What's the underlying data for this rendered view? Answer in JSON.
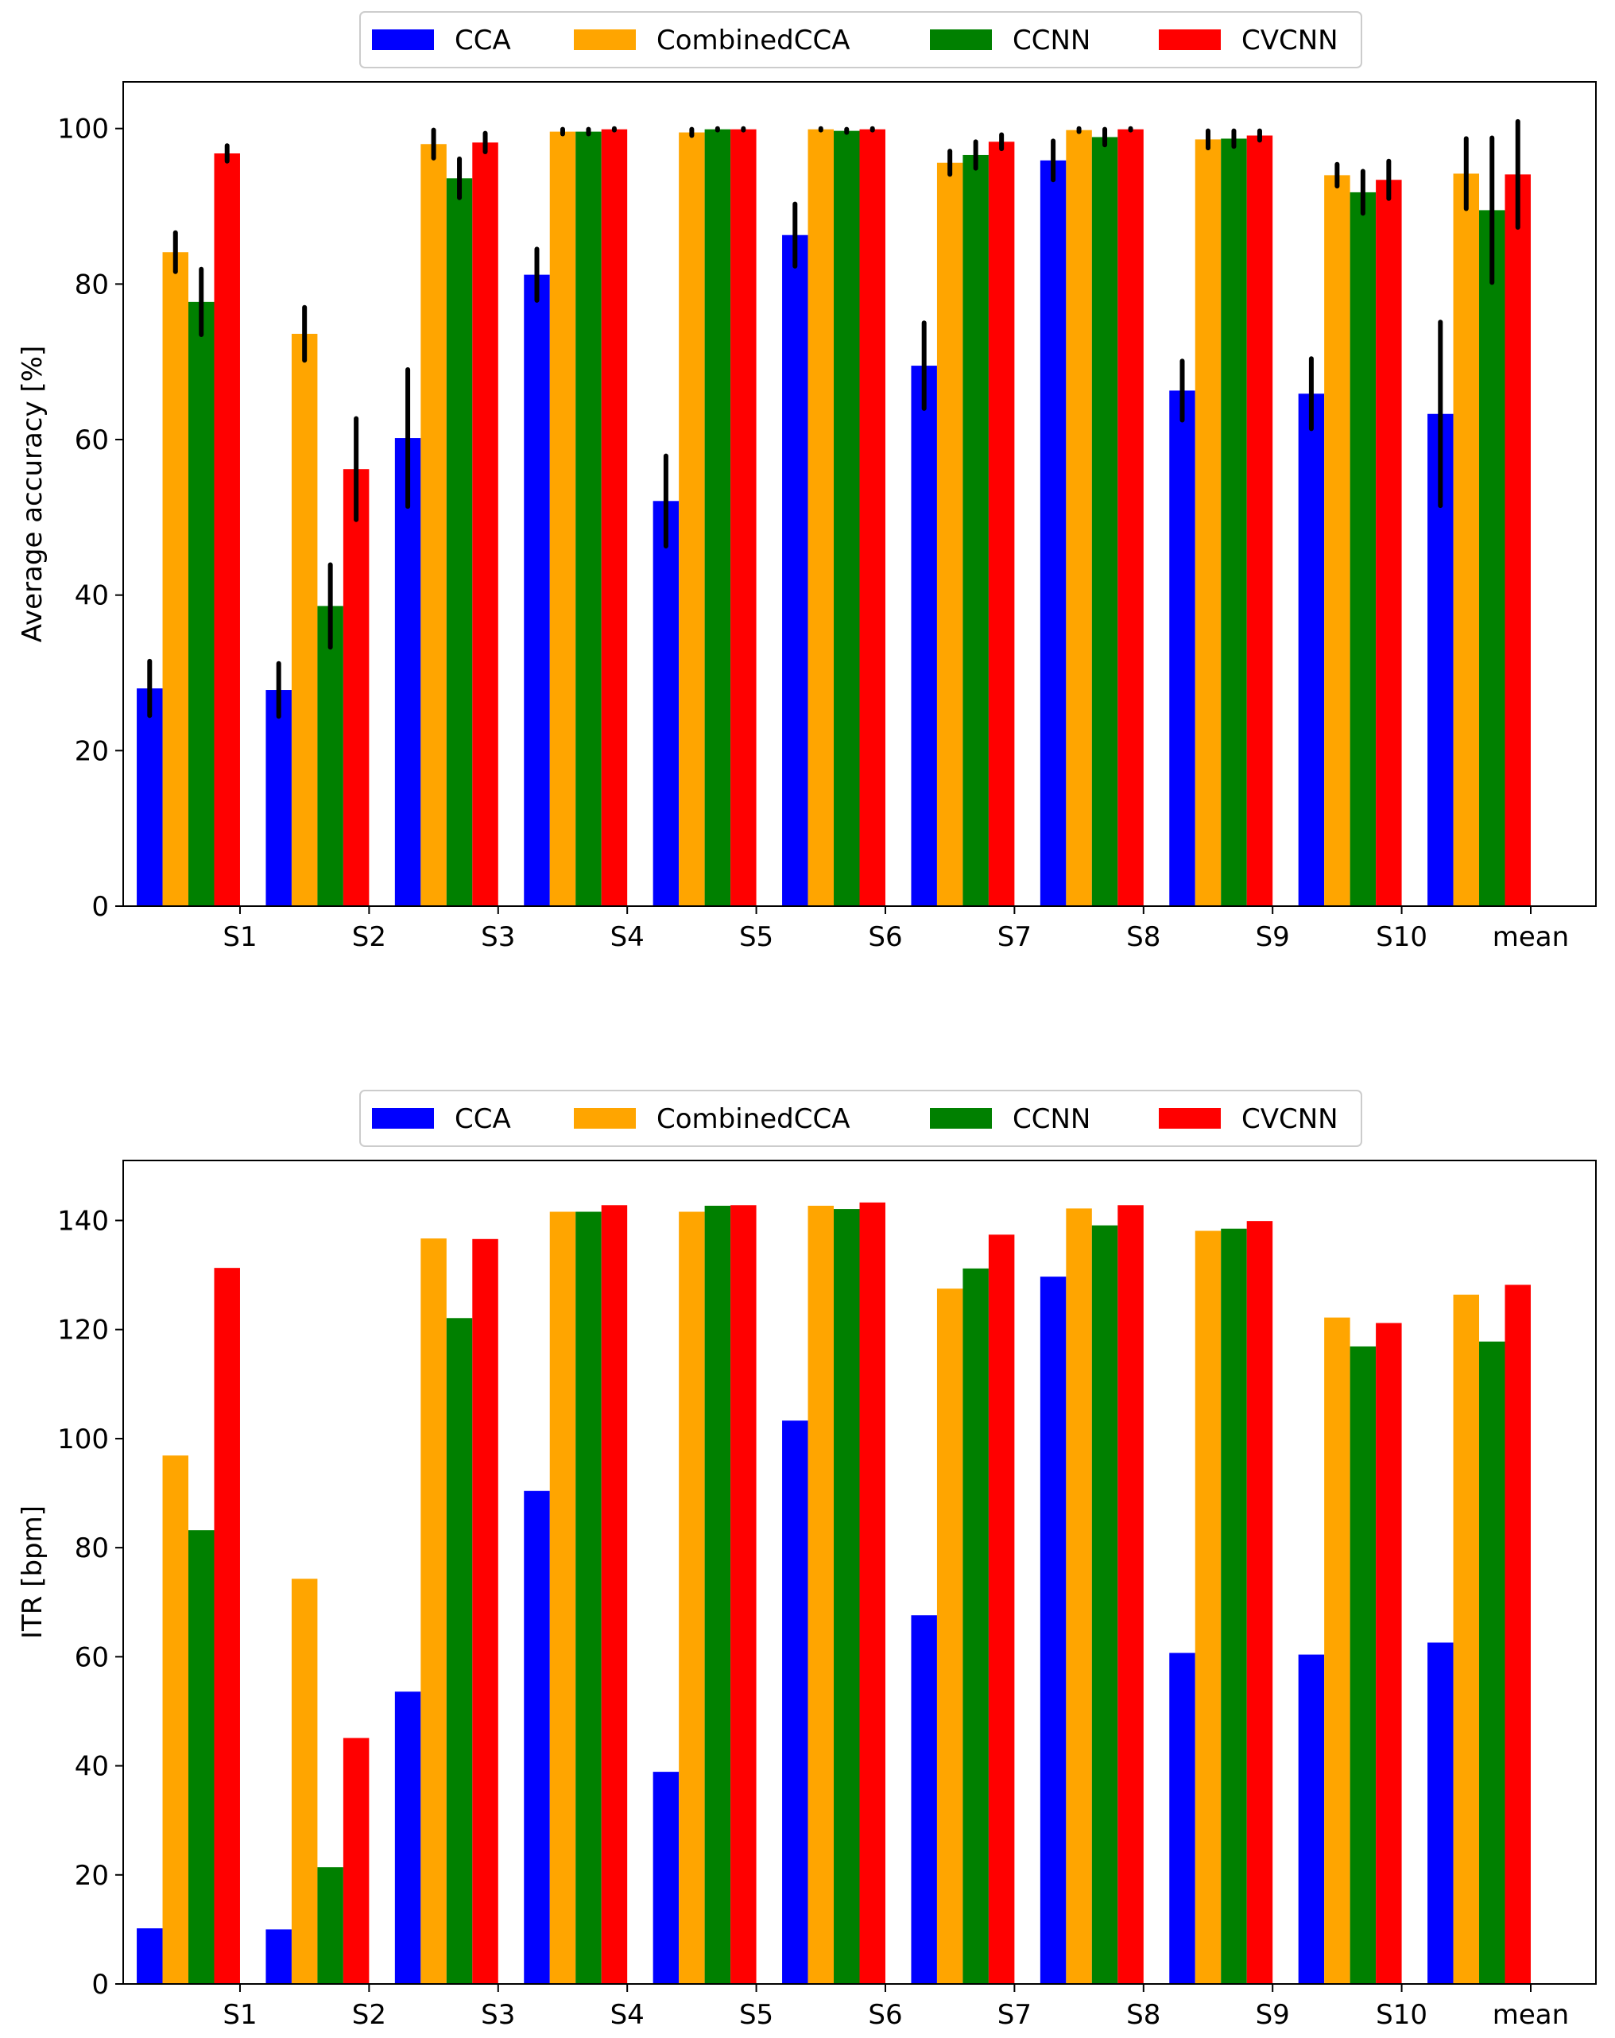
{
  "chart_data": [
    {
      "type": "bar",
      "ylabel": "Average accuracy [%]",
      "xlabel": "",
      "ylim": [
        0,
        106
      ],
      "yticks": [
        0,
        20,
        40,
        60,
        80,
        100
      ],
      "categories": [
        "S1",
        "S2",
        "S3",
        "S4",
        "S5",
        "S6",
        "S7",
        "S8",
        "S9",
        "S10",
        "mean"
      ],
      "legend_position": "top-center, above plot",
      "series": [
        {
          "name": "CCA",
          "color": "#0000ff",
          "values": [
            28.0,
            27.8,
            60.2,
            81.2,
            52.1,
            86.3,
            69.5,
            95.9,
            66.3,
            65.9,
            63.3
          ],
          "errors": [
            3.5,
            3.4,
            8.8,
            3.3,
            5.8,
            4.0,
            5.5,
            2.5,
            3.8,
            4.5,
            11.8
          ]
        },
        {
          "name": "CombinedCCA",
          "color": "#ffa500",
          "values": [
            84.1,
            73.6,
            98.0,
            99.6,
            99.5,
            99.9,
            95.6,
            99.8,
            98.6,
            94.0,
            94.2
          ],
          "errors": [
            2.5,
            3.4,
            1.8,
            0.3,
            0.4,
            0.1,
            1.5,
            0.2,
            1.1,
            1.4,
            4.5
          ]
        },
        {
          "name": "CCNN",
          "color": "#008000",
          "values": [
            77.7,
            38.6,
            93.6,
            99.6,
            99.9,
            99.7,
            96.6,
            98.9,
            98.7,
            91.8,
            89.5
          ],
          "errors": [
            4.2,
            5.3,
            2.5,
            0.3,
            0.1,
            0.2,
            1.7,
            1.0,
            1.0,
            2.7,
            9.3
          ]
        },
        {
          "name": "CVCNN",
          "color": "#ff0000",
          "values": [
            96.8,
            56.2,
            98.2,
            99.9,
            99.9,
            99.9,
            98.3,
            99.9,
            99.1,
            93.4,
            94.1
          ],
          "errors": [
            1.0,
            6.5,
            1.2,
            0.1,
            0.1,
            0.1,
            0.9,
            0.1,
            0.6,
            2.4,
            6.8
          ]
        }
      ]
    },
    {
      "type": "bar",
      "ylabel": "ITR [bpm]",
      "xlabel": "",
      "ylim": [
        0,
        151
      ],
      "yticks": [
        0,
        20,
        40,
        60,
        80,
        100,
        120,
        140
      ],
      "categories": [
        "S1",
        "S2",
        "S3",
        "S4",
        "S5",
        "S6",
        "S7",
        "S8",
        "S9",
        "S10",
        "mean"
      ],
      "legend_position": "top-center, above plot",
      "series": [
        {
          "name": "CCA",
          "color": "#0000ff",
          "values": [
            10.2,
            10.0,
            53.6,
            90.4,
            38.9,
            103.3,
            67.6,
            129.7,
            60.7,
            60.4,
            62.6
          ]
        },
        {
          "name": "CombinedCCA",
          "color": "#ffa500",
          "values": [
            96.9,
            74.3,
            136.7,
            141.6,
            141.6,
            142.7,
            127.5,
            142.2,
            138.1,
            122.2,
            126.4
          ]
        },
        {
          "name": "CCNN",
          "color": "#008000",
          "values": [
            83.2,
            21.4,
            122.1,
            141.6,
            142.7,
            142.1,
            131.2,
            139.1,
            138.5,
            116.9,
            117.8
          ]
        },
        {
          "name": "CVCNN",
          "color": "#ff0000",
          "values": [
            131.3,
            45.1,
            136.6,
            142.8,
            142.8,
            143.3,
            137.4,
            142.8,
            139.9,
            121.2,
            128.2
          ]
        }
      ]
    }
  ]
}
